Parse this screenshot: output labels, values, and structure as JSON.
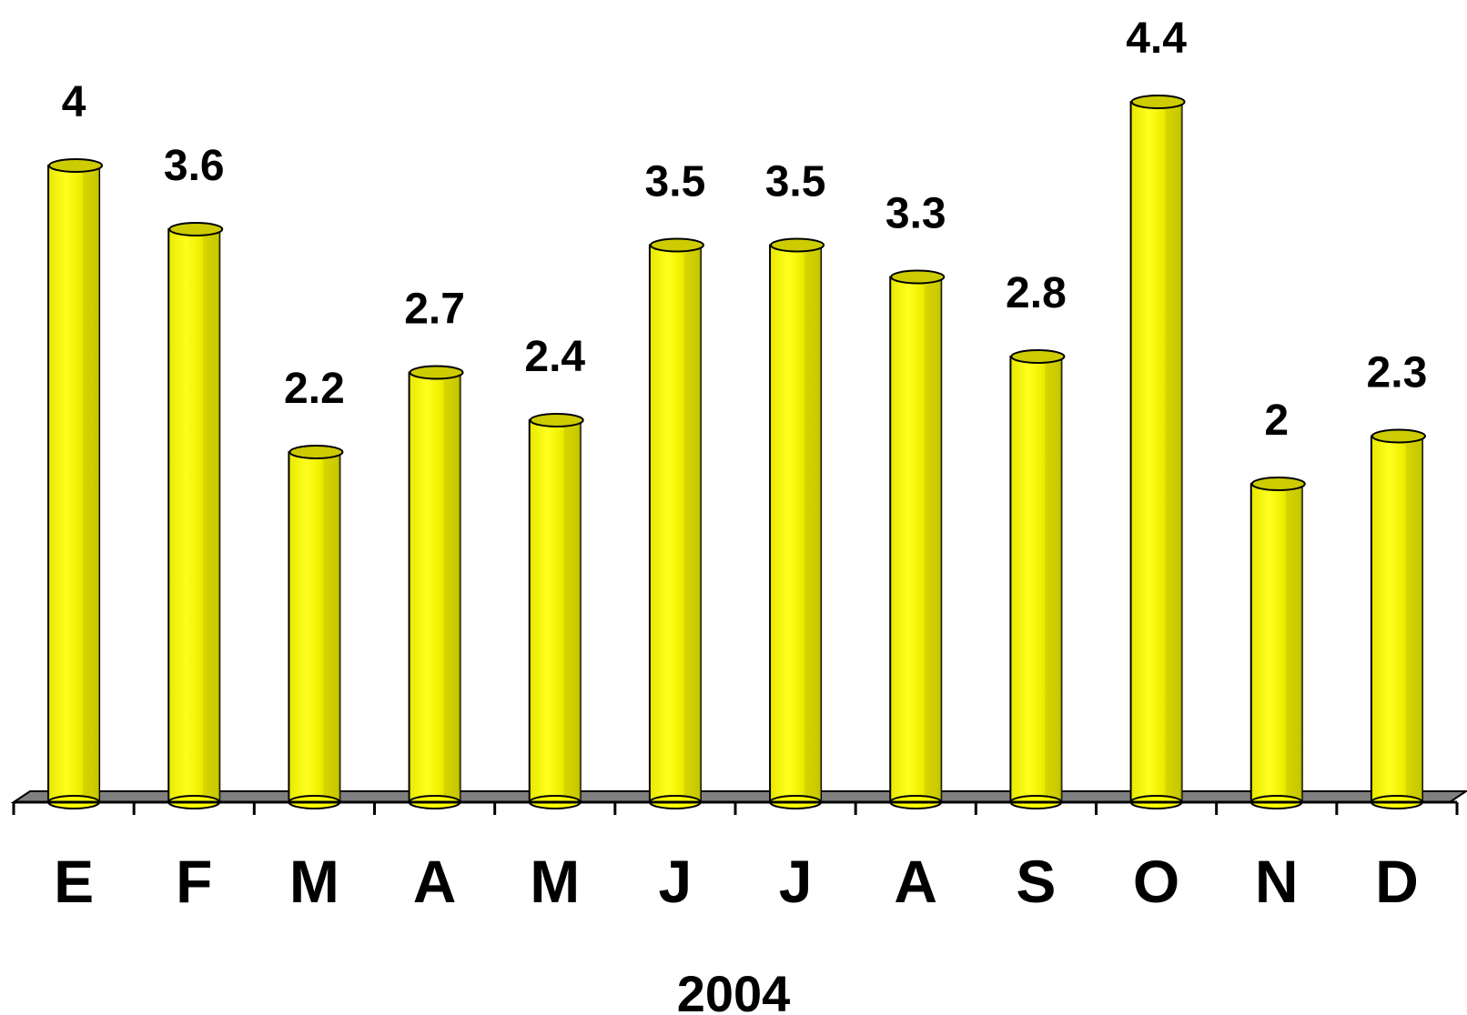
{
  "chart_data": {
    "type": "bar",
    "categories": [
      "E",
      "F",
      "M",
      "A",
      "M",
      "J",
      "J",
      "A",
      "S",
      "O",
      "N",
      "D"
    ],
    "values": [
      4,
      3.6,
      2.2,
      2.7,
      2.4,
      3.5,
      3.5,
      3.3,
      2.8,
      4.4,
      2,
      2.3
    ],
    "value_labels": [
      "4",
      "3.6",
      "2.2",
      "2.7",
      "2.4",
      "3.5",
      "3.5",
      "3.3",
      "2.8",
      "4.4",
      "2",
      "2.3"
    ],
    "xlabel": "2004",
    "ylabel": "",
    "ylim": [
      0,
      5
    ],
    "grid": false,
    "legend": "none",
    "bar_style": "3d-cylinder",
    "colors": {
      "bar": "#ffff00",
      "bar_shade": "#c8c800",
      "bar_top": "#cccc00",
      "floor": "#808080",
      "outline": "#000000"
    }
  }
}
